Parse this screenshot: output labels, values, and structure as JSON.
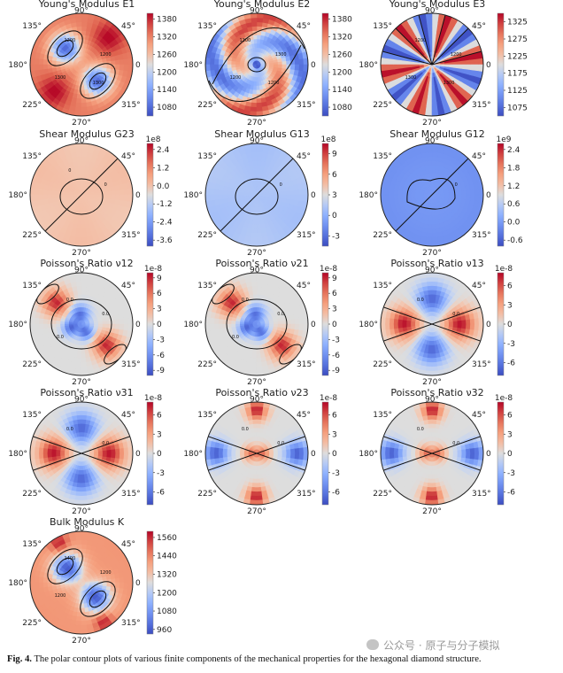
{
  "figure_caption": {
    "label": "Fig. 4.",
    "text": "The polar contour plots of various finite components of the mechanical properties for the hexagonal diamond structure."
  },
  "watermark": {
    "text": "公众号 · 原子与分子模拟"
  },
  "angle_labels": {
    "top": "90°",
    "upper_left": "135°",
    "upper_right": "45°",
    "left": "180°",
    "right": "0",
    "lower_left": "225°",
    "lower_right": "315°",
    "bottom": "270°"
  },
  "chart_data": [
    {
      "type": "heatmap",
      "title": "Young's Modulus E1",
      "pattern": "two_lobe_diag",
      "colorbar_ticks": [
        "1380",
        "1320",
        "1260",
        "1200",
        "1140",
        "1080"
      ],
      "colorbar_exponent": "",
      "range": [
        1050,
        1400
      ],
      "contour_labels": [
        "1200",
        "1200",
        "1300",
        "1300"
      ]
    },
    {
      "type": "heatmap",
      "title": "Young's Modulus E2",
      "pattern": "swirl",
      "colorbar_ticks": [
        "1380",
        "1320",
        "1260",
        "1200",
        "1140",
        "1080"
      ],
      "colorbar_exponent": "",
      "range": [
        1050,
        1400
      ],
      "contour_labels": [
        "1300",
        "1300",
        "1200",
        "1200"
      ]
    },
    {
      "type": "heatmap",
      "title": "Young's Modulus E3",
      "pattern": "radial_sectors",
      "colorbar_ticks": [
        "1325",
        "1275",
        "1225",
        "1175",
        "1125",
        "1075"
      ],
      "colorbar_exponent": "",
      "range": [
        1050,
        1350
      ],
      "contour_labels": [
        "1200",
        "1200",
        "1300",
        "1300"
      ]
    },
    {
      "type": "heatmap",
      "title": "Shear Modulus G23",
      "pattern": "uniform_warm",
      "colorbar_ticks": [
        "2.4",
        "1.2",
        "0.0",
        "-1.2",
        "-2.4",
        "-3.6"
      ],
      "colorbar_exponent": "1e8",
      "range": [
        -4.0,
        2.8
      ],
      "contour_labels": [
        "0",
        "0"
      ]
    },
    {
      "type": "heatmap",
      "title": "Shear Modulus G13",
      "pattern": "uniform_cool",
      "colorbar_ticks": [
        "9",
        "6",
        "3",
        "0",
        "-3"
      ],
      "colorbar_exponent": "1e8",
      "range": [
        -4.5,
        10.5
      ],
      "contour_labels": [
        "0"
      ]
    },
    {
      "type": "heatmap",
      "title": "Shear Modulus G12",
      "pattern": "uniform_blue",
      "colorbar_ticks": [
        "2.4",
        "1.8",
        "1.2",
        "0.6",
        "0.0",
        "-0.6"
      ],
      "colorbar_exponent": "1e9",
      "range": [
        -0.8,
        2.6
      ],
      "contour_labels": [
        "0"
      ]
    },
    {
      "type": "heatmap",
      "title": "Poisson's Ratio ν12",
      "pattern": "poisson_diag",
      "colorbar_ticks": [
        "9",
        "6",
        "3",
        "0",
        "-3",
        "-6",
        "-9"
      ],
      "colorbar_exponent": "1e-8",
      "range": [
        -10,
        10
      ],
      "contour_labels": [
        "0.0",
        "0.0",
        "0.0"
      ]
    },
    {
      "type": "heatmap",
      "title": "Poisson's Ratio ν21",
      "pattern": "poisson_diag",
      "colorbar_ticks": [
        "9",
        "6",
        "3",
        "0",
        "-3",
        "-6",
        "-9"
      ],
      "colorbar_exponent": "1e-8",
      "range": [
        -10,
        10
      ],
      "contour_labels": [
        "0.0",
        "0.0",
        "0.0"
      ]
    },
    {
      "type": "heatmap",
      "title": "Poisson's Ratio ν13",
      "pattern": "quad_vert_neg",
      "colorbar_ticks": [
        "6",
        "3",
        "0",
        "-3",
        "-6"
      ],
      "colorbar_exponent": "1e-8",
      "range": [
        -8,
        8
      ],
      "contour_labels": [
        "0.0",
        "0.0"
      ]
    },
    {
      "type": "heatmap",
      "title": "Poisson's Ratio ν31",
      "pattern": "quad_vert_neg",
      "colorbar_ticks": [
        "6",
        "3",
        "0",
        "-3",
        "-6"
      ],
      "colorbar_exponent": "1e-8",
      "range": [
        -8,
        8
      ],
      "contour_labels": [
        "0.0",
        "0.0"
      ]
    },
    {
      "type": "heatmap",
      "title": "Poisson's Ratio ν23",
      "pattern": "quad_horiz_neg",
      "colorbar_ticks": [
        "6",
        "3",
        "0",
        "-3",
        "-6"
      ],
      "colorbar_exponent": "1e-8",
      "range": [
        -8,
        8
      ],
      "contour_labels": [
        "0.0",
        "0.0"
      ]
    },
    {
      "type": "heatmap",
      "title": "Poisson's Ratio ν32",
      "pattern": "quad_horiz_neg",
      "colorbar_ticks": [
        "6",
        "3",
        "0",
        "-3",
        "-6"
      ],
      "colorbar_exponent": "1e-8",
      "range": [
        -8,
        8
      ],
      "contour_labels": [
        "0.0",
        "0.0"
      ]
    },
    {
      "type": "heatmap",
      "title": "Bulk Modulus K",
      "pattern": "bulk",
      "colorbar_ticks": [
        "1560",
        "1440",
        "1320",
        "1200",
        "1080",
        "960"
      ],
      "colorbar_exponent": "",
      "range": [
        930,
        1600
      ],
      "contour_labels": [
        "1200",
        "1400",
        "1200"
      ]
    }
  ]
}
